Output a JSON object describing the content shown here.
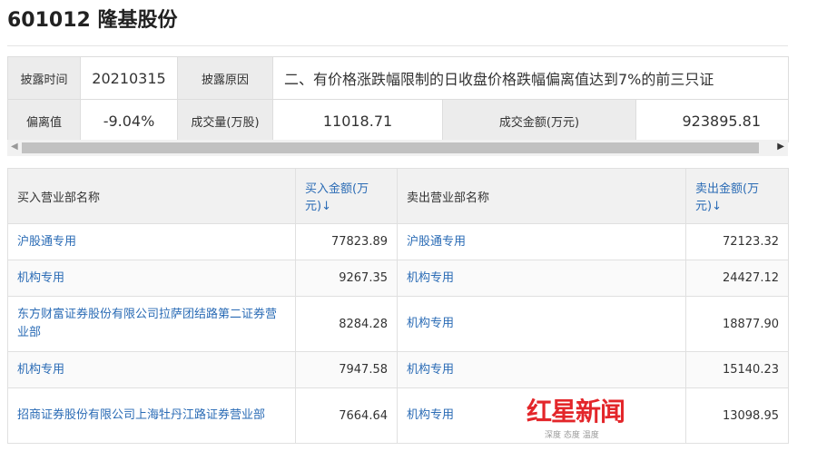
{
  "title": "601012 隆基股份",
  "info": {
    "disclose_time_label": "披露时间",
    "disclose_time": "20210315",
    "disclose_reason_label": "披露原因",
    "disclose_reason": "二、有价格涨跌幅限制的日收盘价格跌幅偏离值达到7%的前三只证",
    "deviation_label": "偏离值",
    "deviation": "-9.04%",
    "volume_label": "成交量(万股)",
    "volume": "11018.71",
    "amount_label": "成交金额(万元)",
    "amount": "923895.81"
  },
  "table": {
    "headers": {
      "buy_name": "买入营业部名称",
      "buy_amount": "买入金额(万元)↓",
      "sell_name": "卖出营业部名称",
      "sell_amount": "卖出金额(万元)↓"
    },
    "rows": [
      {
        "buy_name": "沪股通专用",
        "buy_amount": "77823.89",
        "sell_name": "沪股通专用",
        "sell_amount": "72123.32"
      },
      {
        "buy_name": "机构专用",
        "buy_amount": "9267.35",
        "sell_name": "机构专用",
        "sell_amount": "24427.12"
      },
      {
        "buy_name": "东方财富证券股份有限公司拉萨团结路第二证券营业部",
        "buy_amount": "8284.28",
        "sell_name": "机构专用",
        "sell_amount": "18877.90"
      },
      {
        "buy_name": "机构专用",
        "buy_amount": "7947.58",
        "sell_name": "机构专用",
        "sell_amount": "15140.23"
      },
      {
        "buy_name": "招商证券股份有限公司上海牡丹江路证券营业部",
        "buy_amount": "7664.64",
        "sell_name": "机构专用",
        "sell_amount": "13098.95"
      }
    ]
  },
  "watermark": {
    "text": "红星新闻",
    "sub": "深度 态度 温度"
  }
}
